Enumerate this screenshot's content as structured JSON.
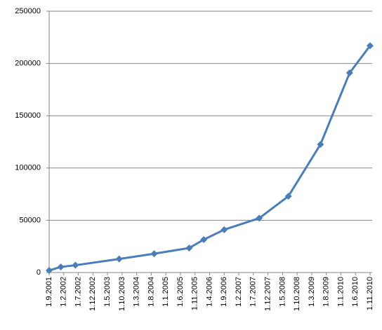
{
  "chart_data": {
    "type": "line",
    "x": [
      "1.9.2001",
      "1.1.2002",
      "1.6.2002",
      "1.9.2003",
      "1.9.2004",
      "1.9.2005",
      "1.2.2006",
      "1.9.2006",
      "1.9.2007",
      "1.7.2008",
      "1.6.2009",
      "1.4.2010",
      "1.11.2010"
    ],
    "values": [
      2000,
      5400,
      7000,
      13000,
      18000,
      23500,
      31500,
      41000,
      52000,
      73000,
      122600,
      191000,
      217000
    ],
    "color": "#4a7ebb",
    "xlim": [
      "1.9.2001",
      "1.11.2010"
    ],
    "xticks": [
      "1.9.2001",
      "1.2.2002",
      "1.7.2002",
      "1.12.2002",
      "1.5.2003",
      "1.10.2003",
      "1.3.2004",
      "1.8.2004",
      "1.1.2005",
      "1.6.2005",
      "1.11.2005",
      "1.4.2006",
      "1.9.2006",
      "1.2.2007",
      "1.7.2007",
      "1.12.2007",
      "1.5.2008",
      "1.10.2008",
      "1.3.2009",
      "1.8.2009",
      "1.1.2010",
      "1.6.2010",
      "1.11.2010"
    ],
    "ylim": [
      0,
      250000
    ],
    "yticks": [
      0,
      50000,
      100000,
      150000,
      200000,
      250000
    ],
    "grid": true
  }
}
